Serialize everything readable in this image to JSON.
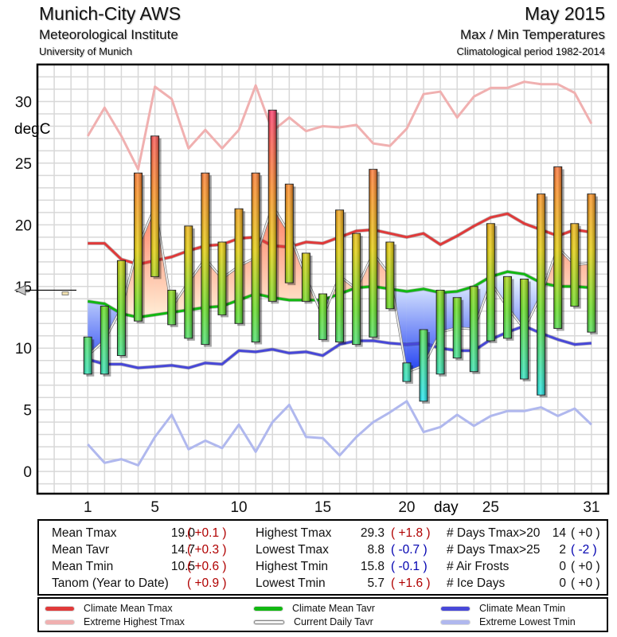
{
  "header": {
    "station": "Munich-City AWS",
    "institute": "Meteorological Institute",
    "university": "University of Munich",
    "month": "May 2015",
    "subtitle": "Max / Min Temperatures",
    "period": "Climatological period 1982-2014"
  },
  "chart_data": {
    "type": "bar",
    "title": "Max / Min Temperatures",
    "xlabel": "day",
    "ylabel": "degC",
    "ylim": [
      -1.8,
      33
    ],
    "xlim": [
      -2,
      32
    ],
    "grid": true,
    "x_ticks": [
      1,
      5,
      10,
      15,
      20,
      25,
      31
    ],
    "y_ticks": [
      0,
      5,
      10,
      15,
      20,
      25,
      30
    ],
    "days": [
      1,
      2,
      3,
      4,
      5,
      6,
      7,
      8,
      9,
      10,
      11,
      12,
      13,
      14,
      15,
      16,
      17,
      18,
      19,
      20,
      21,
      22,
      23,
      24,
      25,
      26,
      27,
      28,
      29,
      30,
      31
    ],
    "daily_tmax": [
      10.9,
      13.4,
      17.1,
      24.2,
      27.2,
      14.7,
      19.9,
      24.2,
      18.6,
      21.3,
      24.2,
      29.3,
      23.3,
      17.7,
      14.4,
      21.2,
      19.3,
      24.5,
      18.6,
      8.8,
      11.5,
      14.7,
      14.1,
      15.0,
      20.1,
      15.8,
      15.6,
      22.5,
      24.7,
      20.1,
      22.5
    ],
    "daily_tmin": [
      7.9,
      7.9,
      9.4,
      12.2,
      15.8,
      11.9,
      10.8,
      10.3,
      12.7,
      12.0,
      10.5,
      13.8,
      15.3,
      13.8,
      10.7,
      10.5,
      10.3,
      10.9,
      13.2,
      7.3,
      5.7,
      7.9,
      9.2,
      8.1,
      10.6,
      10.8,
      7.5,
      6.2,
      11.6,
      13.4,
      11.3
    ],
    "series": [
      {
        "name": "Climate Mean Tmax",
        "color": "#e03a3a",
        "values": [
          18.5,
          18.5,
          17.2,
          16.8,
          17.1,
          17.4,
          17.9,
          18.3,
          18.4,
          18.9,
          19.0,
          18.3,
          18.2,
          18.6,
          18.5,
          19.0,
          19.5,
          19.6,
          19.3,
          19.0,
          19.3,
          18.4,
          19.1,
          19.9,
          20.6,
          20.9,
          20.1,
          19.6,
          19.1,
          19.6,
          19.4
        ]
      },
      {
        "name": "Climate Mean Tavr",
        "color": "#12b812",
        "values": [
          13.8,
          13.6,
          12.8,
          12.5,
          12.7,
          12.9,
          13.1,
          13.3,
          13.4,
          13.9,
          14.4,
          14.1,
          13.9,
          13.9,
          13.9,
          14.4,
          14.9,
          15.0,
          14.8,
          14.6,
          14.8,
          14.5,
          14.6,
          15.0,
          15.8,
          16.2,
          16.0,
          15.3,
          15.0,
          15.0,
          14.9
        ]
      },
      {
        "name": "Climate Mean Tmin",
        "color": "#4848d8",
        "values": [
          9.1,
          8.7,
          8.7,
          8.4,
          8.5,
          8.6,
          8.4,
          8.8,
          8.7,
          9.8,
          9.7,
          9.9,
          9.6,
          9.7,
          9.4,
          10.3,
          10.6,
          10.6,
          10.4,
          10.3,
          10.4,
          10.0,
          9.8,
          9.8,
          10.7,
          11.3,
          11.8,
          11.2,
          10.7,
          10.3,
          10.4
        ]
      },
      {
        "name": "Extreme Highest Tmax",
        "color": "#f0b0b0",
        "values": [
          27.2,
          29.5,
          27.2,
          24.5,
          31.2,
          30.2,
          26.2,
          27.7,
          26.2,
          27.7,
          31.3,
          27.6,
          28.7,
          27.6,
          28.0,
          27.9,
          28.1,
          26.6,
          26.4,
          27.8,
          30.6,
          30.8,
          28.7,
          30.4,
          31.1,
          31.1,
          31.6,
          31.4,
          31.4,
          30.7,
          28.2
        ]
      },
      {
        "name": "Current Daily Tavr",
        "color": "#c8c8c8",
        "values": []
      },
      {
        "name": "Extreme Lowest Tmin",
        "color": "#b0b8ee",
        "values": [
          2.2,
          0.7,
          1.0,
          0.5,
          2.8,
          4.6,
          1.8,
          2.5,
          1.9,
          3.8,
          1.6,
          4.0,
          5.4,
          2.8,
          2.7,
          1.3,
          2.8,
          4.0,
          4.8,
          5.7,
          3.2,
          3.6,
          4.6,
          3.7,
          4.5,
          4.9,
          4.9,
          5.2,
          4.5,
          5.1,
          3.8
        ]
      }
    ],
    "mean_tavr_marker": 14.7
  },
  "stats": {
    "col1": [
      {
        "label": "Mean Tmax",
        "value": "19.0",
        "anom": "( +0.1 )",
        "tone": "red"
      },
      {
        "label": "Mean Tavr",
        "value": "14.7",
        "anom": "( +0.3 )",
        "tone": "red"
      },
      {
        "label": "Mean Tmin",
        "value": "10.5",
        "anom": "( +0.6 )",
        "tone": "red"
      },
      {
        "label": "Tanom (Year to Date)",
        "value": "",
        "anom": "( +0.9 )",
        "tone": "red"
      }
    ],
    "col2": [
      {
        "label": "Highest Tmax",
        "value": "29.3",
        "anom": "( +1.8 )",
        "tone": "red"
      },
      {
        "label": "Lowest Tmax",
        "value": "8.8",
        "anom": "( -0.7 )",
        "tone": "blue"
      },
      {
        "label": "Highest Tmin",
        "value": "15.8",
        "anom": "( -0.1 )",
        "tone": "blue"
      },
      {
        "label": "Lowest Tmin",
        "value": "5.7",
        "anom": "( +1.6 )",
        "tone": "red"
      }
    ],
    "col3": [
      {
        "label": "# Days Tmax>20",
        "value": "14",
        "anom": "( +0 )",
        "tone": "blk"
      },
      {
        "label": "# Days Tmax>25",
        "value": "2",
        "anom": "( -2 )",
        "tone": "blue"
      },
      {
        "label": "# Air Frosts",
        "value": "0",
        "anom": "( +0 )",
        "tone": "blk"
      },
      {
        "label": "# Ice Days",
        "value": "0",
        "anom": "( +0 )",
        "tone": "blk"
      }
    ]
  },
  "legend": [
    {
      "label": "Climate Mean Tmax",
      "color": "#e03a3a"
    },
    {
      "label": "Climate Mean Tavr",
      "color": "#12b812"
    },
    {
      "label": "Climate Mean Tmin",
      "color": "#4848d8"
    },
    {
      "label": "Extreme Highest Tmax",
      "color": "#f0b0b0"
    },
    {
      "label": "Current Daily Tavr",
      "color": "#e8e8e8"
    },
    {
      "label": "Extreme Lowest Tmin",
      "color": "#b0b8ee"
    }
  ]
}
